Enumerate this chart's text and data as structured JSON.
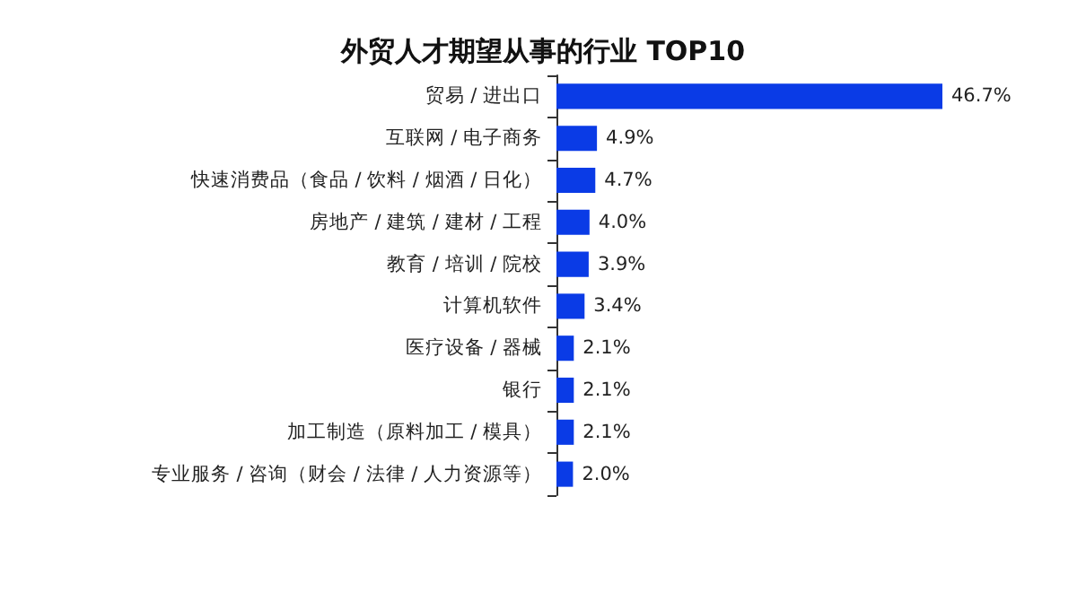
{
  "chart_data": {
    "type": "bar",
    "orientation": "horizontal",
    "title": "外贸人才期望从事的行业 TOP10",
    "categories": [
      "贸易 / 进出口",
      "互联网 / 电子商务",
      "快速消费品（食品 / 饮料 / 烟酒 / 日化）",
      "房地产 / 建筑 / 建材 / 工程",
      "教育 / 培训 / 院校",
      "计算机软件",
      "医疗设备 / 器械",
      "银行",
      "加工制造（原料加工 / 模具）",
      "专业服务 / 咨询（财会 / 法律 / 人力资源等）"
    ],
    "values": [
      46.7,
      4.9,
      4.7,
      4.0,
      3.9,
      3.4,
      2.1,
      2.1,
      2.1,
      2.0
    ],
    "value_labels": [
      "46.7%",
      "4.9%",
      "4.7%",
      "4.0%",
      "3.9%",
      "3.4%",
      "2.1%",
      "2.1%",
      "2.1%",
      "2.0%"
    ],
    "color": "#0a3be6"
  }
}
